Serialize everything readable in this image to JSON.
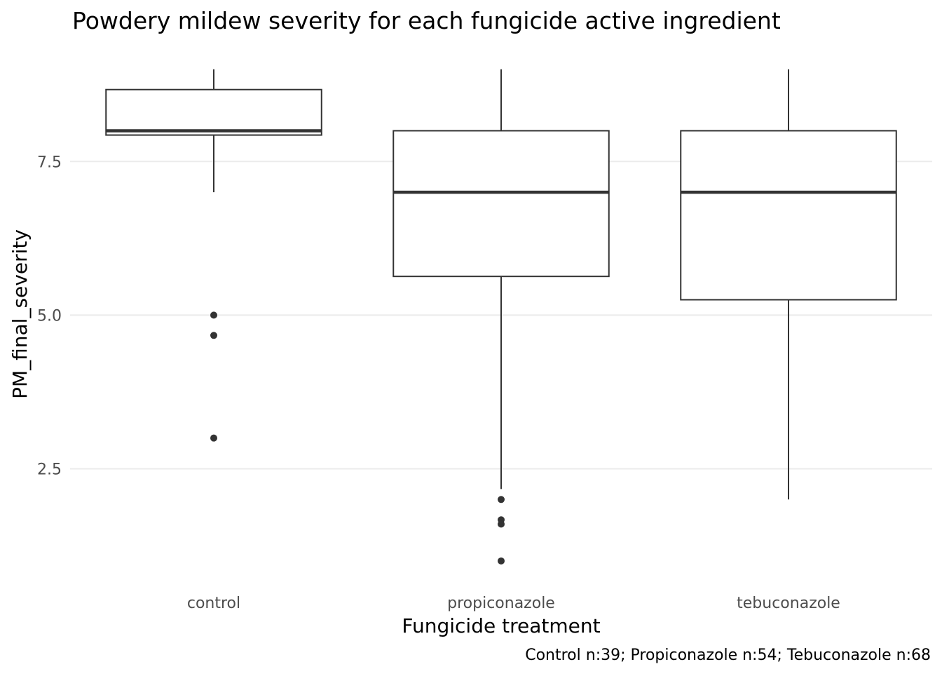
{
  "chart_data": {
    "type": "boxplot",
    "title": "Powdery mildew severity for each fungicide active ingredient",
    "xlabel": "Fungicide treatment",
    "ylabel": "PM_final_severity",
    "caption": "Control n:39; Propiconazole n:54; Tebuconazole n:68",
    "ylim": [
      0.6,
      9.5
    ],
    "yticks": [
      2.5,
      5.0,
      7.5
    ],
    "ytick_labels": [
      "2.5",
      "5.0",
      "7.5"
    ],
    "grid": true,
    "legend": "none",
    "colors": {
      "box_stroke": "#333333",
      "box_fill": "#ffffff",
      "median": "#333333",
      "outlier": "#333333",
      "grid": "#ebebeb"
    },
    "categories": [
      "control",
      "propiconazole",
      "tebuconazole"
    ],
    "boxes": [
      {
        "category": "control",
        "whisker_low": 7.0,
        "q1": 7.93,
        "median": 8.0,
        "q3": 8.67,
        "whisker_high": 9.0,
        "outliers": [
          5.0,
          4.67,
          3.0
        ]
      },
      {
        "category": "propiconazole",
        "whisker_low": 2.17,
        "q1": 5.63,
        "median": 7.0,
        "q3": 8.0,
        "whisker_high": 9.0,
        "outliers": [
          2.0,
          1.67,
          1.6,
          1.0
        ]
      },
      {
        "category": "tebuconazole",
        "whisker_low": 2.0,
        "q1": 5.25,
        "median": 7.0,
        "q3": 8.0,
        "whisker_high": 9.0,
        "outliers": []
      }
    ]
  }
}
